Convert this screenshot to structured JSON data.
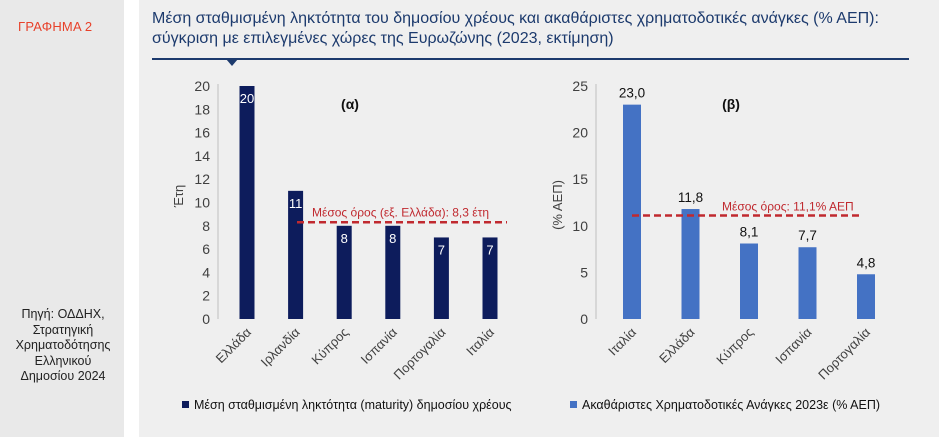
{
  "figure_label": "ΓΡΑΦΗΜΑ 2",
  "title_line1": "Μέση σταθμισμένη ληκτότητα του δημοσίου χρέους και ακαθάριστες χρηματοδοτικές ανάγκες (% ΑΕΠ):",
  "title_line2": "σύγκριση με επιλεγμένες χώρες της Ευρωζώνης (2023, εκτίμηση)",
  "source_lines": [
    "Πηγή: ΟΔΔΗΧ,",
    "Στρατηγική",
    "Χρηματοδότησης",
    "Ελληνικού",
    "Δημοσίου 2024"
  ],
  "colors": {
    "title": "#1c3a6d",
    "label": "#e8412a",
    "series_a": "#0d1c5c",
    "series_b": "#4472c4",
    "avg_line": "#c0292f"
  },
  "chart_data": [
    {
      "type": "bar",
      "panel_label": "(α)",
      "ylabel": "Έτη",
      "ylim": [
        0,
        20
      ],
      "yticks": [
        0,
        2,
        4,
        6,
        8,
        10,
        12,
        14,
        16,
        18,
        20
      ],
      "categories": [
        "Ελλάδα",
        "Ιρλανδία",
        "Κύπρος",
        "Ισπανία",
        "Πορτογαλία",
        "Ιταλία"
      ],
      "series": [
        {
          "name": "Μέση σταθμισμένη ληκτότητα (maturity) δημοσίου χρέους",
          "values": [
            20,
            11,
            8,
            8,
            7,
            7
          ]
        }
      ],
      "data_labels": [
        "20",
        "11",
        "8",
        "8",
        "7",
        "7"
      ],
      "reference_line": {
        "value": 8.3,
        "label": "Μέσος όρος (εξ. Ελλάδα): 8,3 έτη"
      },
      "legend_position": "bottom"
    },
    {
      "type": "bar",
      "panel_label": "(β)",
      "ylabel": "(% ΑΕΠ)",
      "ylim": [
        0,
        25
      ],
      "yticks": [
        0,
        5,
        10,
        15,
        20,
        25
      ],
      "categories": [
        "Ιταλία",
        "Ελλάδα",
        "Κύπρος",
        "Ισπανία",
        "Πορτογαλία"
      ],
      "series": [
        {
          "name": "Ακαθάριστες Χρηματοδοτικές Ανάγκες 2023ε (% ΑΕΠ)",
          "values": [
            23.0,
            11.8,
            8.1,
            7.7,
            4.8
          ]
        }
      ],
      "data_labels": [
        "23,0",
        "11,8",
        "8,1",
        "7,7",
        "4,8"
      ],
      "reference_line": {
        "value": 11.1,
        "label": "Μέσος όρος: 11,1% ΑΕΠ"
      },
      "legend_position": "bottom"
    }
  ]
}
